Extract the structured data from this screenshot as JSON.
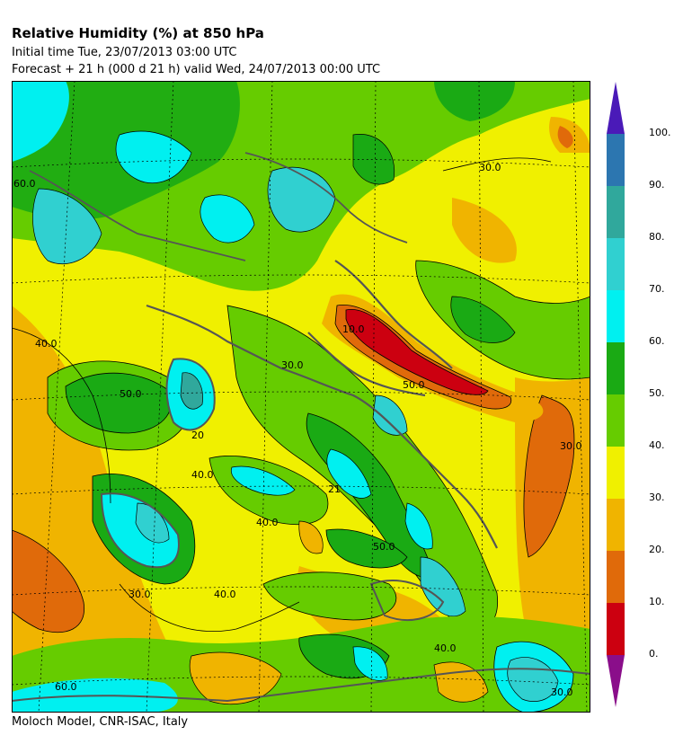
{
  "header": {
    "title": "Relative Humidity (%) at 850 hPa",
    "initial_line": "Initial time  Tue, 23/07/2013  03:00 UTC",
    "forecast_line": "Forecast  +  21 h  (000 d 21 h)  valid Wed, 24/07/2013 00:00 UTC"
  },
  "footer": {
    "credit": "Moloch Model, CNR-ISAC, Italy"
  },
  "legend": {
    "colors": [
      "#cc0010",
      "#e06a0a",
      "#f0b400",
      "#f0f000",
      "#66cc00",
      "#1aaa14",
      "#00f0f0",
      "#30d0d0",
      "#30a89c",
      "#2c76b0"
    ],
    "top_arrow": "#4a1ab8",
    "bottom_arrow": "#8a0e8a",
    "labels": [
      "0.",
      "10.",
      "20.",
      "30.",
      "40.",
      "50.",
      "60.",
      "70.",
      "80.",
      "90.",
      "100."
    ]
  },
  "map": {
    "contour_labels": [
      "60.0",
      "40.0",
      "50.0",
      "40.0",
      "30.0",
      "30.0",
      "21",
      "20",
      "10.0",
      "50.0",
      "40.0",
      "50.0",
      "30.0",
      "40.0",
      "40.0",
      "60.0",
      "30.0",
      "30.0"
    ]
  }
}
